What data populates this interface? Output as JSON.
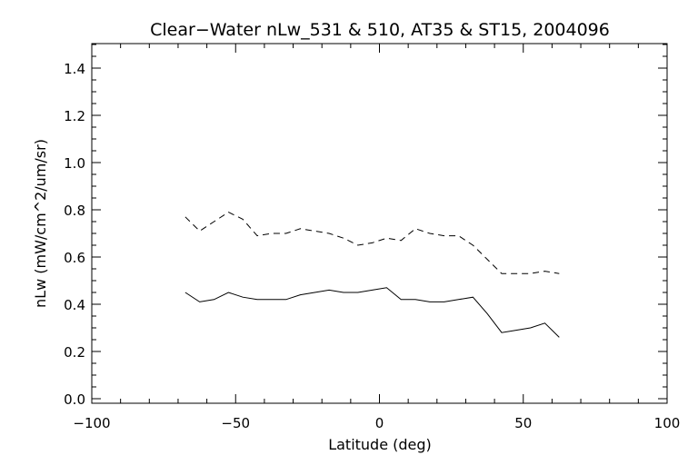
{
  "chart_data": {
    "type": "line",
    "title": "Clear−Water nLw_531 & 510, AT35 & ST15, 2004096",
    "xlabel": "Latitude (deg)",
    "ylabel": "nLw (mW/cm^2/um/sr)",
    "xlim": [
      -100,
      100
    ],
    "ylim": [
      0.0,
      1.5
    ],
    "x_ticks": [
      -100,
      -50,
      0,
      50,
      100
    ],
    "x_tick_labels": [
      "−100",
      "−50",
      "0",
      "50",
      "100"
    ],
    "y_ticks": [
      0.0,
      0.2,
      0.4,
      0.6,
      0.8,
      1.0,
      1.2,
      1.4
    ],
    "y_tick_labels": [
      "0.0",
      "0.2",
      "0.4",
      "0.6",
      "0.8",
      "1.0",
      "1.2",
      "1.4"
    ],
    "grid": false,
    "legend": "none",
    "series": [
      {
        "style": "dashed",
        "color": "#000000",
        "points": [
          [
            -67.5,
            0.77
          ],
          [
            -62.5,
            0.71
          ],
          [
            -57.5,
            0.75
          ],
          [
            -52.5,
            0.79
          ],
          [
            -47.5,
            0.76
          ],
          [
            -42.5,
            0.69
          ],
          [
            -37.5,
            0.7
          ],
          [
            -32.5,
            0.7
          ],
          [
            -27.5,
            0.72
          ],
          [
            -22.5,
            0.71
          ],
          [
            -17.5,
            0.7
          ],
          [
            -12.5,
            0.68
          ],
          [
            -7.5,
            0.65
          ],
          [
            -2.5,
            0.66
          ],
          [
            2.5,
            0.68
          ],
          [
            7.5,
            0.67
          ],
          [
            12.5,
            0.72
          ],
          [
            17.5,
            0.7
          ],
          [
            22.5,
            0.69
          ],
          [
            27.5,
            0.69
          ],
          [
            32.5,
            0.65
          ],
          [
            37.5,
            0.59
          ],
          [
            42.5,
            0.53
          ],
          [
            47.5,
            0.53
          ],
          [
            52.5,
            0.53
          ],
          [
            57.5,
            0.54
          ],
          [
            62.5,
            0.53
          ]
        ]
      },
      {
        "style": "solid",
        "color": "#000000",
        "points": [
          [
            -67.5,
            0.45
          ],
          [
            -62.5,
            0.41
          ],
          [
            -57.5,
            0.42
          ],
          [
            -52.5,
            0.45
          ],
          [
            -47.5,
            0.43
          ],
          [
            -42.5,
            0.42
          ],
          [
            -37.5,
            0.42
          ],
          [
            -32.5,
            0.42
          ],
          [
            -27.5,
            0.44
          ],
          [
            -22.5,
            0.45
          ],
          [
            -17.5,
            0.46
          ],
          [
            -12.5,
            0.45
          ],
          [
            -7.5,
            0.45
          ],
          [
            -2.5,
            0.46
          ],
          [
            2.5,
            0.47
          ],
          [
            7.5,
            0.42
          ],
          [
            12.5,
            0.42
          ],
          [
            17.5,
            0.41
          ],
          [
            22.5,
            0.41
          ],
          [
            27.5,
            0.42
          ],
          [
            32.5,
            0.43
          ],
          [
            37.5,
            0.36
          ],
          [
            42.5,
            0.28
          ],
          [
            47.5,
            0.29
          ],
          [
            52.5,
            0.3
          ],
          [
            57.5,
            0.32
          ],
          [
            62.5,
            0.26
          ]
        ]
      }
    ]
  }
}
